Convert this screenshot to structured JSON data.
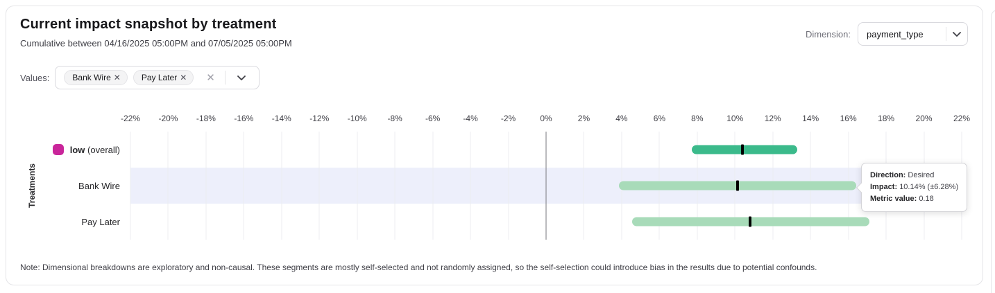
{
  "header": {
    "title": "Current impact snapshot by treatment",
    "subtitle": "Cumulative between 04/16/2025 05:00PM and 07/05/2025 05:00PM",
    "dimension_label": "Dimension:",
    "dimension_value": "payment_type"
  },
  "filters": {
    "values_label": "Values:",
    "chips": [
      "Bank Wire",
      "Pay Later"
    ],
    "chip_remove_glyph": "✕",
    "clear_glyph": "✕"
  },
  "chart_data": {
    "type": "interval-bar",
    "ylabel": "Treatments",
    "x_min": -22,
    "x_max": 22,
    "x_tick_unit": "%",
    "ticks": [
      -22,
      -20,
      -18,
      -16,
      -14,
      -12,
      -10,
      -8,
      -6,
      -4,
      -2,
      0,
      2,
      4,
      6,
      8,
      10,
      12,
      14,
      16,
      18,
      20,
      22
    ],
    "rows": [
      {
        "label": "low",
        "suffix": "(overall)",
        "bold": true,
        "swatch_color": "#c9259a",
        "bar_color": "#3bba8b",
        "low": 7.7,
        "high": 13.3,
        "impact": 10.4,
        "highlighted": false
      },
      {
        "label": "Bank Wire",
        "bold": false,
        "bar_color": "#a8dbb9",
        "low": 3.86,
        "high": 16.42,
        "impact": 10.14,
        "highlighted": true
      },
      {
        "label": "Pay Later",
        "bold": false,
        "bar_color": "#a8dbb9",
        "low": 4.55,
        "high": 17.1,
        "impact": 10.8,
        "highlighted": false
      }
    ],
    "legend_position": "left-row-labels",
    "grid": true
  },
  "tooltip": {
    "direction_label": "Direction:",
    "direction_value": "Desired",
    "impact_label": "Impact:",
    "impact_value": "10.14% (±6.28%)",
    "metric_label": "Metric value:",
    "metric_value": "0.18"
  },
  "note": "Note: Dimensional breakdowns are exploratory and non-causal. These segments are mostly self-selected and not randomly assigned, so the self-selection could introduce bias in the results due to potential confounds.",
  "colors": {
    "overall_bar": "#3bba8b",
    "treatment_bar": "#a8dbb9",
    "legend_magenta": "#c9259a",
    "row_highlight": "#edeffb",
    "marker": "#000000",
    "zero_line": "#77777c"
  }
}
